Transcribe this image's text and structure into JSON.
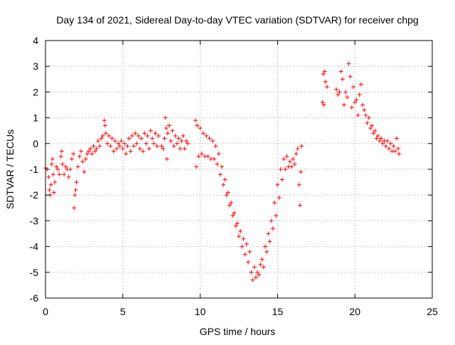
{
  "chart_data": {
    "type": "scatter",
    "title": "Day 134 of 2021, Sidereal Day-to-day VTEC variation (SDTVAR) for receiver chpg",
    "xlabel": "GPS time / hours",
    "ylabel": "SDTVAR / TECUs",
    "xlim": [
      0,
      25
    ],
    "ylim": [
      -6,
      4
    ],
    "xticks": [
      0,
      5,
      10,
      15,
      20,
      25
    ],
    "yticks": [
      -6,
      -5,
      -4,
      -3,
      -2,
      -1,
      0,
      1,
      2,
      3,
      4
    ],
    "grid": true,
    "marker": "+",
    "color": "#ff0000",
    "series": [
      {
        "name": "SDTVAR",
        "points": [
          [
            0.0,
            -0.95
          ],
          [
            0.1,
            -1.0
          ],
          [
            0.2,
            -1.3
          ],
          [
            0.25,
            -1.8
          ],
          [
            0.3,
            -2.0
          ],
          [
            0.35,
            -1.6
          ],
          [
            0.4,
            -0.8
          ],
          [
            0.45,
            -0.6
          ],
          [
            0.5,
            -1.2
          ],
          [
            0.55,
            -1.9
          ],
          [
            0.6,
            -1.5
          ],
          [
            0.7,
            -0.9
          ],
          [
            0.8,
            -1.0
          ],
          [
            0.9,
            -1.2
          ],
          [
            1.0,
            -0.5
          ],
          [
            1.05,
            -0.3
          ],
          [
            1.1,
            -0.8
          ],
          [
            1.2,
            -1.2
          ],
          [
            1.3,
            -0.9
          ],
          [
            1.4,
            -1.0
          ],
          [
            1.5,
            -1.3
          ],
          [
            1.6,
            -1.0
          ],
          [
            1.7,
            -0.6
          ],
          [
            1.8,
            -0.4
          ],
          [
            1.85,
            -2.5
          ],
          [
            1.9,
            -2.0
          ],
          [
            1.95,
            -1.8
          ],
          [
            2.0,
            -1.5
          ],
          [
            2.1,
            -0.9
          ],
          [
            2.2,
            -0.5
          ],
          [
            2.3,
            -0.3
          ],
          [
            2.4,
            -0.7
          ],
          [
            2.5,
            -1.1
          ],
          [
            2.6,
            -0.6
          ],
          [
            2.7,
            -0.4
          ],
          [
            2.8,
            -0.3
          ],
          [
            2.9,
            -0.2
          ],
          [
            3.0,
            -0.4
          ],
          [
            3.1,
            -0.1
          ],
          [
            3.2,
            -0.3
          ],
          [
            3.3,
            -0.2
          ],
          [
            3.4,
            0.1
          ],
          [
            3.5,
            -0.1
          ],
          [
            3.6,
            0.2
          ],
          [
            3.7,
            0.3
          ],
          [
            3.8,
            0.9
          ],
          [
            3.85,
            0.7
          ],
          [
            3.9,
            0.4
          ],
          [
            4.0,
            0.0
          ],
          [
            4.1,
            0.3
          ],
          [
            4.2,
            -0.1
          ],
          [
            4.3,
            0.2
          ],
          [
            4.4,
            -0.3
          ],
          [
            4.5,
            0.1
          ],
          [
            4.6,
            -0.2
          ],
          [
            4.7,
            0.0
          ],
          [
            4.8,
            -0.1
          ],
          [
            4.9,
            0.1
          ],
          [
            5.0,
            -0.2
          ],
          [
            5.1,
            0.0
          ],
          [
            5.2,
            -0.4
          ],
          [
            5.3,
            -0.1
          ],
          [
            5.4,
            0.2
          ],
          [
            5.5,
            -0.3
          ],
          [
            5.6,
            0.3
          ],
          [
            5.7,
            -0.1
          ],
          [
            5.8,
            0.4
          ],
          [
            5.9,
            0.0
          ],
          [
            6.0,
            0.3
          ],
          [
            6.1,
            -0.2
          ],
          [
            6.2,
            0.2
          ],
          [
            6.3,
            -0.3
          ],
          [
            6.4,
            0.4
          ],
          [
            6.5,
            0.0
          ],
          [
            6.6,
            0.3
          ],
          [
            6.7,
            -0.2
          ],
          [
            6.8,
            0.5
          ],
          [
            6.9,
            0.2
          ],
          [
            7.0,
            0.0
          ],
          [
            7.1,
            0.4
          ],
          [
            7.2,
            -0.1
          ],
          [
            7.3,
            0.3
          ],
          [
            7.5,
            -0.1
          ],
          [
            7.6,
            -0.2
          ],
          [
            7.7,
            0.2
          ],
          [
            7.75,
            1.0
          ],
          [
            7.8,
            0.6
          ],
          [
            7.85,
            -0.6
          ],
          [
            7.9,
            0.4
          ],
          [
            8.0,
            0.7
          ],
          [
            8.1,
            0.1
          ],
          [
            8.2,
            0.5
          ],
          [
            8.3,
            -0.1
          ],
          [
            8.4,
            0.3
          ],
          [
            8.5,
            0.0
          ],
          [
            8.6,
            0.2
          ],
          [
            8.7,
            -0.2
          ],
          [
            8.8,
            0.1
          ],
          [
            8.9,
            0.3
          ],
          [
            9.0,
            -0.2
          ],
          [
            9.1,
            0.1
          ],
          [
            9.2,
            0.0
          ],
          [
            9.7,
            0.9
          ],
          [
            9.75,
            -0.9
          ],
          [
            9.8,
            0.7
          ],
          [
            9.9,
            -0.5
          ],
          [
            10.0,
            0.6
          ],
          [
            10.1,
            -0.4
          ],
          [
            10.2,
            0.4
          ],
          [
            10.3,
            -0.5
          ],
          [
            10.4,
            0.3
          ],
          [
            10.5,
            -0.5
          ],
          [
            10.6,
            0.2
          ],
          [
            10.7,
            -0.6
          ],
          [
            10.8,
            0.1
          ],
          [
            10.9,
            -0.6
          ],
          [
            11.0,
            -0.1
          ],
          [
            11.1,
            -0.8
          ],
          [
            11.2,
            -0.4
          ],
          [
            11.3,
            -1.2
          ],
          [
            11.4,
            -0.9
          ],
          [
            11.5,
            -1.6
          ],
          [
            11.6,
            -1.4
          ],
          [
            11.7,
            -2.0
          ],
          [
            11.8,
            -1.9
          ],
          [
            11.9,
            -2.4
          ],
          [
            12.0,
            -2.3
          ],
          [
            12.1,
            -2.8
          ],
          [
            12.2,
            -2.7
          ],
          [
            12.3,
            -3.2
          ],
          [
            12.4,
            -3.1
          ],
          [
            12.5,
            -3.6
          ],
          [
            12.6,
            -3.4
          ],
          [
            12.7,
            -4.0
          ],
          [
            12.8,
            -3.7
          ],
          [
            12.9,
            -4.3
          ],
          [
            13.0,
            -3.9
          ],
          [
            13.1,
            -4.6
          ],
          [
            13.2,
            -4.2
          ],
          [
            13.3,
            -5.0
          ],
          [
            13.4,
            -5.3
          ],
          [
            13.5,
            -4.8
          ],
          [
            13.6,
            -5.2
          ],
          [
            13.7,
            -5.0
          ],
          [
            13.8,
            -5.1
          ],
          [
            13.9,
            -4.7
          ],
          [
            14.0,
            -4.5
          ],
          [
            14.1,
            -4.8
          ],
          [
            14.2,
            -4.0
          ],
          [
            14.3,
            -4.2
          ],
          [
            14.4,
            -3.5
          ],
          [
            14.5,
            -3.8
          ],
          [
            14.6,
            -3.0
          ],
          [
            14.7,
            -3.3
          ],
          [
            14.8,
            -2.3
          ],
          [
            14.9,
            -2.8
          ],
          [
            15.0,
            -1.6
          ],
          [
            15.1,
            -2.1
          ],
          [
            15.2,
            -1.0
          ],
          [
            15.3,
            -1.4
          ],
          [
            15.4,
            -0.6
          ],
          [
            15.5,
            -1.0
          ],
          [
            15.6,
            -0.5
          ],
          [
            15.7,
            -0.9
          ],
          [
            15.8,
            -0.7
          ],
          [
            15.9,
            -0.9
          ],
          [
            16.0,
            -0.6
          ],
          [
            16.1,
            -0.8
          ],
          [
            16.2,
            -0.4
          ],
          [
            16.3,
            -0.2
          ],
          [
            16.4,
            -1.6
          ],
          [
            16.45,
            -2.4
          ],
          [
            16.5,
            -1.1
          ],
          [
            16.55,
            -0.1
          ],
          [
            17.9,
            1.6
          ],
          [
            17.95,
            2.7
          ],
          [
            18.0,
            1.5
          ],
          [
            18.05,
            2.8
          ],
          [
            18.1,
            2.4
          ],
          [
            18.2,
            2.2
          ],
          [
            18.8,
            2.1
          ],
          [
            18.9,
            1.9
          ],
          [
            19.0,
            2.0
          ],
          [
            19.1,
            2.8
          ],
          [
            19.2,
            2.5
          ],
          [
            19.3,
            1.5
          ],
          [
            19.4,
            2.0
          ],
          [
            19.5,
            1.8
          ],
          [
            19.6,
            3.1
          ],
          [
            19.7,
            2.6
          ],
          [
            19.8,
            1.4
          ],
          [
            19.9,
            2.2
          ],
          [
            20.0,
            1.6
          ],
          [
            20.1,
            1.7
          ],
          [
            20.2,
            1.1
          ],
          [
            20.3,
            1.9
          ],
          [
            20.4,
            2.3
          ],
          [
            20.5,
            1.5
          ],
          [
            20.6,
            1.3
          ],
          [
            20.7,
            1.1
          ],
          [
            20.8,
            0.8
          ],
          [
            20.9,
            1.0
          ],
          [
            21.0,
            0.6
          ],
          [
            21.1,
            0.7
          ],
          [
            21.2,
            0.4
          ],
          [
            21.3,
            0.5
          ],
          [
            21.4,
            0.2
          ],
          [
            21.5,
            0.3
          ],
          [
            21.6,
            0.1
          ],
          [
            21.7,
            0.2
          ],
          [
            21.8,
            0.0
          ],
          [
            21.9,
            0.1
          ],
          [
            22.0,
            -0.1
          ],
          [
            22.1,
            0.1
          ],
          [
            22.2,
            -0.2
          ],
          [
            22.3,
            0.0
          ],
          [
            22.4,
            -0.3
          ],
          [
            22.5,
            -0.1
          ],
          [
            22.6,
            -0.3
          ],
          [
            22.7,
            0.2
          ],
          [
            22.8,
            -0.2
          ],
          [
            22.85,
            -0.4
          ]
        ]
      }
    ]
  }
}
